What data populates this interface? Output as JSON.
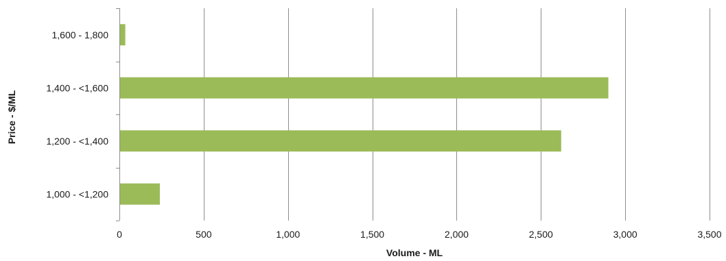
{
  "chart_data": {
    "type": "bar",
    "orientation": "horizontal",
    "title": "",
    "xlabel": "Volume - ML",
    "ylabel": "Price - $/ML",
    "categories": [
      "1,000 - <1,200",
      "1,200 - <1,400",
      "1,400 - <1,600",
      "1,600 - 1,800"
    ],
    "values": [
      240,
      2620,
      2900,
      35
    ],
    "xlim": [
      0,
      3500
    ],
    "xticks": [
      0,
      500,
      1000,
      1500,
      2000,
      2500,
      3000,
      3500
    ],
    "xtick_labels": [
      "0",
      "500",
      "1,000",
      "1,500",
      "2,000",
      "2,500",
      "3,000",
      "3,500"
    ],
    "grid": "vertical",
    "legend": "none",
    "colors": {
      "bar": "#9bbb59",
      "grid": "#8c8c8c",
      "axis": "#8c8c8c"
    }
  }
}
